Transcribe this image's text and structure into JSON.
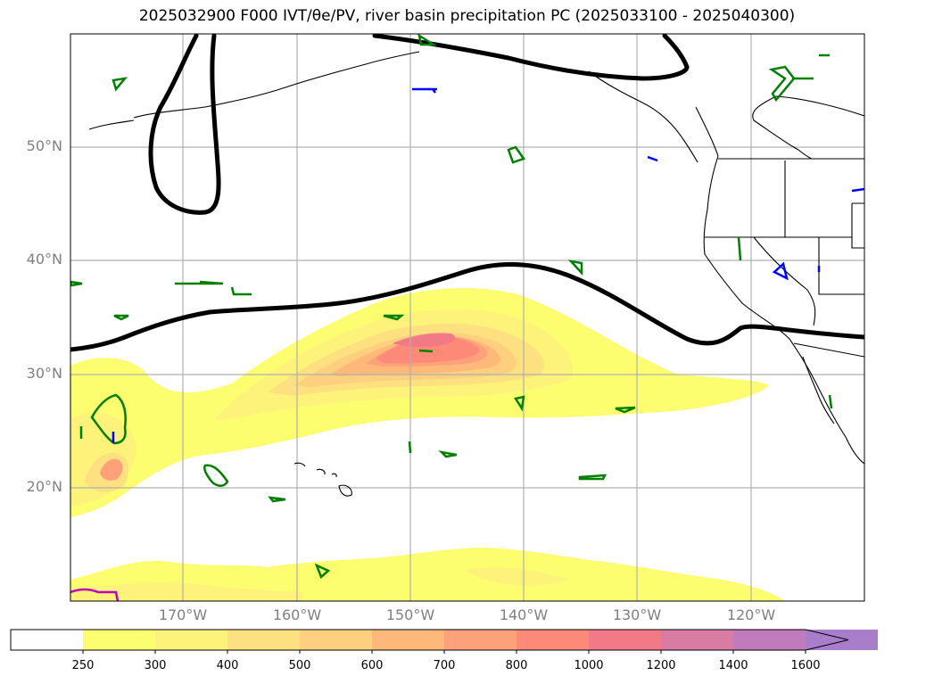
{
  "title": "2025032900 F000 IVT/θe/PV, river basin precipitation PC (2025033100 - 2025040300)",
  "map": {
    "lon_range": [
      -180,
      -110
    ],
    "lat_range": [
      10,
      60
    ],
    "lat_labels": [
      "20°N",
      "30°N",
      "40°N",
      "50°N"
    ],
    "lon_labels": [
      "170°W",
      "160°W",
      "150°W",
      "140°W",
      "130°W",
      "120°W"
    ],
    "lat_ticks": [
      20,
      30,
      40,
      50
    ],
    "lon_ticks": [
      -170,
      -160,
      -150,
      -140,
      -130,
      -120
    ]
  },
  "colorbar": {
    "levels": [
      "250",
      "300",
      "400",
      "500",
      "600",
      "700",
      "800",
      "1000",
      "1200",
      "1400",
      "1600"
    ],
    "colors": [
      "#ffffff",
      "#fdfe6f",
      "#fdf27a",
      "#fde07f",
      "#fdcf7f",
      "#fdb87a",
      "#fda17a",
      "#fd8a78",
      "#f27a86",
      "#d97ba3",
      "#c07bbd",
      "#a87dca"
    ],
    "extend": "max"
  },
  "contour_colors": {
    "theta_e": "#000000",
    "pv_green": "#008000",
    "pv_blue": "#0000ff",
    "magenta": "#c000c0"
  }
}
